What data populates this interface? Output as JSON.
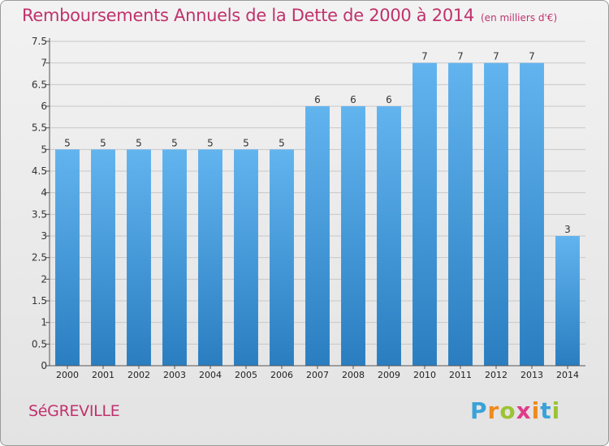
{
  "title": "Remboursements Annuels de la Dette de 2000 à 2014",
  "unit": "(en milliers d'€)",
  "place": "SéGREVILLE",
  "logo": {
    "text": "Proxiti",
    "letter_colors": [
      "#3aa2d8",
      "#f08a1c",
      "#9cc333",
      "#e03c8a",
      "#f08a1c",
      "#3aa2d8",
      "#9cc333"
    ]
  },
  "colors": {
    "title": "#c0326c",
    "bar_top": "#62b4ef",
    "bar_bottom": "#2a7ec0",
    "grid": "#c8c8c8"
  },
  "chart_data": {
    "type": "bar",
    "categories": [
      "2000",
      "2001",
      "2002",
      "2003",
      "2004",
      "2005",
      "2006",
      "2007",
      "2008",
      "2009",
      "2010",
      "2011",
      "2012",
      "2013",
      "2014"
    ],
    "values": [
      5,
      5,
      5,
      5,
      5,
      5,
      5,
      6,
      6,
      6,
      7,
      7,
      7,
      7,
      3
    ],
    "y_ticks": [
      "0",
      "0.5",
      "1",
      "1.5",
      "2",
      "2.5",
      "3",
      "3.5",
      "4",
      "4.5",
      "5",
      "5.5",
      "6",
      "6.5",
      "7",
      "7.5"
    ],
    "ylim": [
      0,
      7.5
    ],
    "grid": true
  }
}
